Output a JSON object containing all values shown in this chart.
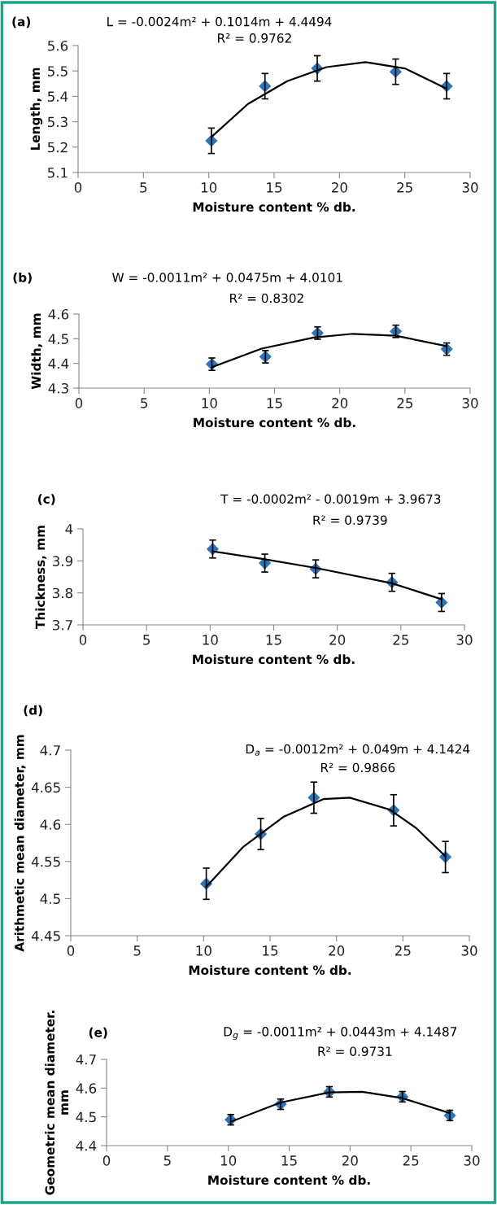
{
  "chart_data": [
    {
      "type": "scatter",
      "xlabel": "Moisture content % db.",
      "ylabel": "Length, mm",
      "annotations": [
        "(a)",
        "L = -0.0024m² + 0.1014m + 4.4494",
        "R² = 0.9762"
      ],
      "xlim": [
        0,
        30
      ],
      "xticks": [
        0,
        5,
        10,
        15,
        20,
        25,
        30
      ],
      "ylim": [
        5.1,
        5.6
      ],
      "yticks": [
        5.1,
        5.2,
        5.3,
        5.4,
        5.5,
        5.6
      ],
      "grid": false,
      "legend": false,
      "series": [
        {
          "type": "scatter",
          "marker": "diamond",
          "color": "#2e75b6",
          "x": [
            10.2,
            14.3,
            18.3,
            24.3,
            28.2
          ],
          "values": [
            5.225,
            5.44,
            5.51,
            5.497,
            5.44
          ],
          "errors": [
            0.05,
            0.05,
            0.05,
            0.05,
            0.05
          ]
        },
        {
          "type": "line",
          "color": "#000000",
          "x": [
            10.2,
            13,
            16,
            19,
            22,
            25,
            28.2
          ],
          "values": [
            5.24,
            5.37,
            5.46,
            5.515,
            5.535,
            5.51,
            5.43
          ]
        }
      ]
    },
    {
      "type": "scatter",
      "xlabel": "Moisture content % db.",
      "ylabel": "Width, mm",
      "annotations": [
        "(b)",
        "W = -0.0011m² + 0.0475m + 4.0101",
        "R² = 0.8302"
      ],
      "xlim": [
        0,
        30
      ],
      "xticks": [
        0,
        5,
        10,
        15,
        20,
        25,
        30
      ],
      "ylim": [
        4.3,
        4.6
      ],
      "yticks": [
        4.3,
        4.4,
        4.5,
        4.6
      ],
      "grid": false,
      "legend": false,
      "series": [
        {
          "type": "scatter",
          "marker": "diamond",
          "color": "#2e75b6",
          "x": [
            10.2,
            14.3,
            18.3,
            24.3,
            28.2
          ],
          "values": [
            4.397,
            4.427,
            4.523,
            4.53,
            4.458
          ],
          "errors": [
            0.025,
            0.025,
            0.025,
            0.025,
            0.025
          ]
        },
        {
          "type": "line",
          "color": "#000000",
          "x": [
            10.2,
            14,
            18,
            21,
            24.3,
            28.2
          ],
          "values": [
            4.385,
            4.46,
            4.505,
            4.52,
            4.512,
            4.47
          ]
        }
      ]
    },
    {
      "type": "scatter",
      "xlabel": "Moisture content % db.",
      "ylabel": "Thickness, mm",
      "annotations": [
        "(c)",
        "T = -0.0002m² - 0.0019m + 3.9673",
        "R² = 0.9739"
      ],
      "xlim": [
        0,
        30
      ],
      "xticks": [
        0,
        5,
        10,
        15,
        20,
        25,
        30
      ],
      "ylim": [
        3.7,
        4.0
      ],
      "yticks": [
        3.7,
        3.8,
        3.9,
        {
          "value": 4.0,
          "label": "4"
        }
      ],
      "grid": false,
      "legend": false,
      "series": [
        {
          "type": "scatter",
          "marker": "diamond",
          "color": "#2e75b6",
          "x": [
            10.2,
            14.3,
            18.3,
            24.3,
            28.2
          ],
          "values": [
            3.937,
            3.893,
            3.875,
            3.833,
            3.77
          ],
          "errors": [
            0.028,
            0.028,
            0.028,
            0.028,
            0.028
          ]
        },
        {
          "type": "line",
          "color": "#000000",
          "x": [
            10.2,
            14.3,
            18.3,
            24.3,
            28.2
          ],
          "values": [
            3.93,
            3.905,
            3.878,
            3.83,
            3.78
          ]
        }
      ]
    },
    {
      "type": "scatter",
      "xlabel": "Moisture content % db.",
      "ylabel": "Arithmetic mean diameter, mm",
      "annotations": [
        "(d)",
        "D$_{a}$ = -0.0012m² + 0.049m + 4.1424",
        "R² = 0.9866"
      ],
      "xlim": [
        0,
        30
      ],
      "xticks": [
        0,
        5,
        10,
        15,
        20,
        25,
        30
      ],
      "ylim": [
        4.45,
        4.7
      ],
      "yticks": [
        4.45,
        4.5,
        4.55,
        4.6,
        4.65,
        4.7
      ],
      "grid": false,
      "legend": false,
      "series": [
        {
          "type": "scatter",
          "marker": "diamond",
          "color": "#2e75b6",
          "x": [
            10.2,
            14.3,
            18.3,
            24.3,
            28.2
          ],
          "values": [
            4.52,
            4.587,
            4.636,
            4.619,
            4.556
          ],
          "errors": [
            0.021,
            0.021,
            0.021,
            0.021,
            0.021
          ]
        },
        {
          "type": "line",
          "color": "#000000",
          "x": [
            10.2,
            13,
            16,
            19,
            21,
            24,
            26,
            28.2
          ],
          "values": [
            4.516,
            4.57,
            4.61,
            4.634,
            4.636,
            4.62,
            4.595,
            4.557
          ]
        }
      ]
    },
    {
      "type": "scatter",
      "xlabel": "Moisture content % db.",
      "ylabel": "Geometric mean diameter. mm",
      "annotations": [
        "(e)",
        "D$_{g}$ = -0.0011m² + 0.0443m + 4.1487",
        "R² = 0.9731"
      ],
      "xlim": [
        0,
        30
      ],
      "xticks": [
        0,
        5,
        10,
        15,
        20,
        25,
        30
      ],
      "ylim": [
        4.4,
        4.7
      ],
      "yticks": [
        4.4,
        4.5,
        4.6,
        4.7
      ],
      "grid": false,
      "legend": false,
      "series": [
        {
          "type": "scatter",
          "marker": "diamond",
          "color": "#2e75b6",
          "x": [
            10.2,
            14.3,
            18.3,
            24.3,
            28.2
          ],
          "values": [
            4.49,
            4.544,
            4.587,
            4.57,
            4.505
          ],
          "errors": [
            0.018,
            0.018,
            0.018,
            0.018,
            0.018
          ]
        },
        {
          "type": "line",
          "color": "#000000",
          "x": [
            10.2,
            14.3,
            18.3,
            21,
            24.3,
            28.2
          ],
          "values": [
            4.483,
            4.55,
            4.585,
            4.587,
            4.565,
            4.513
          ]
        }
      ]
    }
  ]
}
